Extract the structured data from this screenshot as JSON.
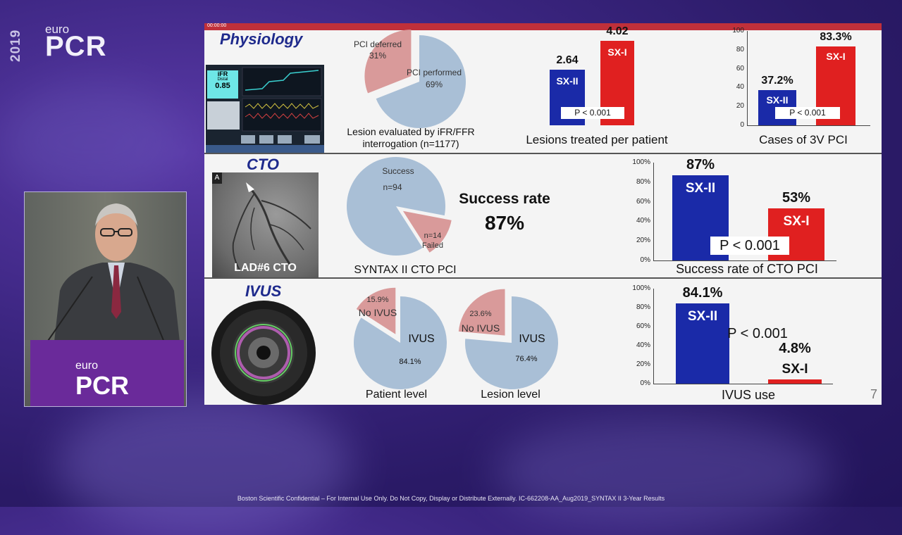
{
  "branding": {
    "year": "2019",
    "euro": "euro",
    "pcr": "PCR"
  },
  "podium": {
    "euro": "euro",
    "pcr": "PCR"
  },
  "slide": {
    "page_number": "7",
    "top_bar_text": "00:00:00",
    "sections": {
      "physiology": {
        "title": "Physiology",
        "ifr_screen": {
          "label": "iFR",
          "sub": "Distal",
          "value": "0.85"
        },
        "pie": {
          "slices": [
            {
              "label": "PCI deferred",
              "pct": "31%",
              "value": 31
            },
            {
              "label": "PCI performed",
              "pct": "69%",
              "value": 69
            }
          ],
          "caption_line1": "Lesion evaluated by iFR/FFR",
          "caption_line2": "interrogation (n=1177)"
        },
        "lesions_chart": {
          "caption": "Lesions treated per patient",
          "p": "P < 0.001"
        },
        "cases_chart": {
          "caption": "Cases of 3V PCI",
          "p": "P < 0.001",
          "ticks": [
            "100",
            "80",
            "60",
            "40",
            "20",
            "0"
          ]
        }
      },
      "cto": {
        "title": "CTO",
        "angio": {
          "corner": "A",
          "label": "LAD#6 CTO"
        },
        "pie": {
          "slices": [
            {
              "label": "Success",
              "n": "n=94",
              "value": 94
            },
            {
              "label": "Failed",
              "n": "n=14",
              "value": 14
            }
          ],
          "caption": "SYNTAX II CTO PCI"
        },
        "success_line1": "Success rate",
        "success_line2": "87%",
        "chart": {
          "caption": "Success rate of CTO PCI",
          "p": "P < 0.001",
          "ticks": [
            "100%",
            "80%",
            "60%",
            "40%",
            "20%",
            "0%"
          ]
        }
      },
      "ivus": {
        "title": "IVUS",
        "patient_pie": {
          "label_main": "IVUS",
          "label_minor": "No IVUS",
          "pct_main": "84.1%",
          "pct_minor": "15.9%",
          "value_main": 84.1,
          "value_minor": 15.9,
          "caption": "Patient level"
        },
        "lesion_pie": {
          "label_main": "IVUS",
          "label_minor": "No IVUS",
          "pct_main": "76.4%",
          "pct_minor": "23.6%",
          "value_main": 76.4,
          "value_minor": 23.6,
          "caption": "Lesion level"
        },
        "chart": {
          "caption": "IVUS use",
          "p": "P < 0.001",
          "ticks": [
            "100%",
            "80%",
            "60%",
            "40%",
            "20%",
            "0%"
          ]
        }
      }
    }
  },
  "chart_data": [
    {
      "type": "bar",
      "categories": [
        "SX-II",
        "SX-I"
      ],
      "values": [
        2.64,
        4.02
      ],
      "labels": [
        "2.64",
        "4.02"
      ],
      "colors": [
        "#1a2aa8",
        "#e02020"
      ],
      "xlabel": "Lesions treated per patient",
      "ylim": [
        0,
        4.5
      ]
    },
    {
      "type": "bar",
      "categories": [
        "SX-II",
        "SX-I"
      ],
      "values": [
        37.2,
        83.3
      ],
      "labels": [
        "37.2%",
        "83.3%"
      ],
      "colors": [
        "#1a2aa8",
        "#e02020"
      ],
      "xlabel": "Cases of 3V PCI",
      "ylim": [
        0,
        100
      ]
    },
    {
      "type": "bar",
      "categories": [
        "SX-II",
        "SX-I"
      ],
      "values": [
        87,
        53
      ],
      "labels": [
        "87%",
        "53%"
      ],
      "colors": [
        "#1a2aa8",
        "#e02020"
      ],
      "xlabel": "Success rate of CTO PCI",
      "ylim": [
        0,
        100
      ]
    },
    {
      "type": "bar",
      "categories": [
        "SX-II",
        "SX-I"
      ],
      "values": [
        84.1,
        4.8
      ],
      "labels": [
        "84.1%",
        "4.8%"
      ],
      "colors": [
        "#1a2aa8",
        "#e02020"
      ],
      "xlabel": "IVUS use",
      "ylim": [
        0,
        100
      ]
    },
    {
      "type": "pie",
      "title": "",
      "slices": [
        {
          "label": "PCI deferred",
          "value": 31
        },
        {
          "label": "PCI performed",
          "value": 69
        }
      ]
    },
    {
      "type": "pie",
      "slices": [
        {
          "label": "Success",
          "value": 94
        },
        {
          "label": "Failed",
          "value": 14
        }
      ]
    },
    {
      "type": "pie",
      "slices": [
        {
          "label": "IVUS",
          "value": 84.1
        },
        {
          "label": "No IVUS",
          "value": 15.9
        }
      ]
    },
    {
      "type": "pie",
      "slices": [
        {
          "label": "IVUS",
          "value": 76.4
        },
        {
          "label": "No IVUS",
          "value": 23.6
        }
      ]
    }
  ],
  "footer": "Boston Scientific Confidential – For Internal Use Only. Do Not Copy, Display or Distribute Externally. IC-662208-AA_Aug2019_SYNTAX II 3-Year Results",
  "colors": {
    "pie_main": "#a9bfd6",
    "pie_minor": "#d99a9a",
    "sx2": "#1a2aa8",
    "sx1": "#e02020"
  }
}
